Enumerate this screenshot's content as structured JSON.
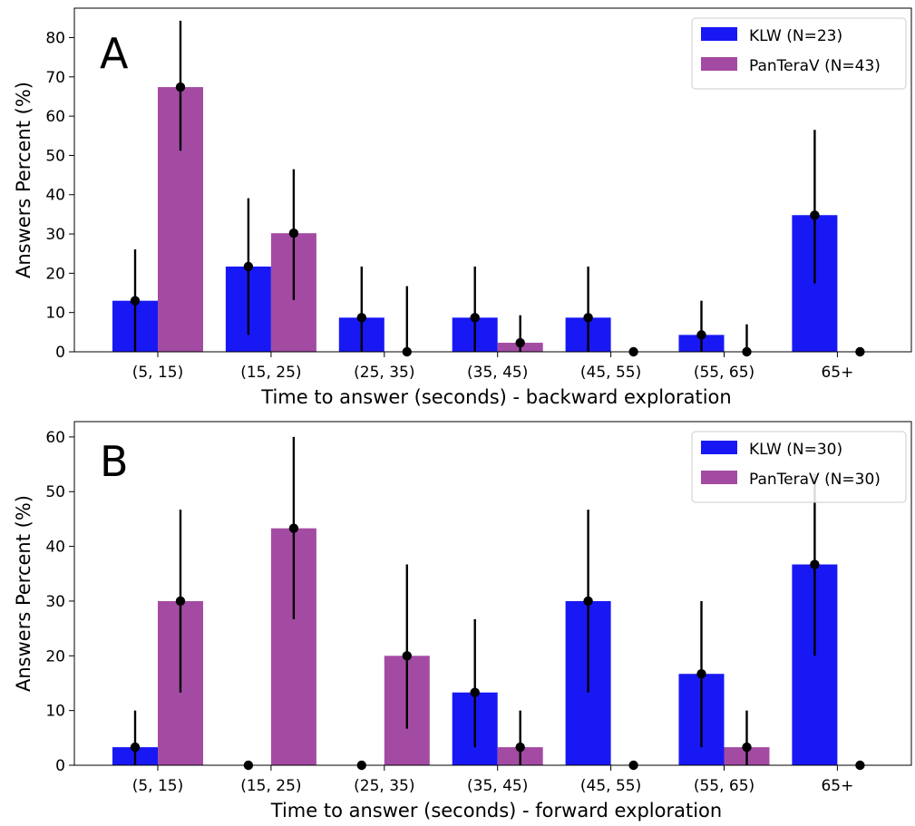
{
  "chart_data": [
    {
      "type": "bar",
      "panel_label": "A",
      "categories": [
        "(5, 15)",
        "(15, 25)",
        "(25, 35)",
        "(35, 45)",
        "(45, 55)",
        "(55, 65)",
        "65+"
      ],
      "xlabel": "Time to answer (seconds) - backward exploration",
      "ylabel": "Answers Percent (%)",
      "ylim": [
        0,
        87.5
      ],
      "yticks": [
        0,
        10,
        20,
        30,
        40,
        50,
        60,
        70,
        80
      ],
      "legend_position": "top-right",
      "grid": false,
      "series": [
        {
          "name": "KLW (N=23)",
          "color": "#1818f5",
          "values": [
            13.0,
            21.7,
            8.7,
            8.7,
            8.7,
            4.3,
            34.8
          ],
          "err_low": [
            0,
            4.3,
            0,
            0,
            0,
            0,
            17.4
          ],
          "err_high": [
            26.1,
            39.1,
            21.7,
            21.7,
            21.7,
            13.0,
            56.5
          ]
        },
        {
          "name": "PanTeraV (N=43)",
          "color": "#a34ba3",
          "values": [
            67.4,
            30.2,
            0,
            2.3,
            0,
            0,
            0
          ],
          "err_low": [
            51.2,
            13.2,
            0,
            0,
            0,
            0,
            0
          ],
          "err_high": [
            84.3,
            46.5,
            16.7,
            9.3,
            0,
            7.0,
            0
          ]
        }
      ]
    },
    {
      "type": "bar",
      "panel_label": "B",
      "categories": [
        "(5, 15)",
        "(15, 25)",
        "(25, 35)",
        "(35, 45)",
        "(45, 55)",
        "(55, 65)",
        "65+"
      ],
      "xlabel": "Time to answer (seconds) - forward exploration",
      "ylabel": "Answers Percent (%)",
      "ylim": [
        0,
        62.8
      ],
      "yticks": [
        0,
        10,
        20,
        30,
        40,
        50,
        60
      ],
      "legend_position": "top-right",
      "grid": false,
      "series": [
        {
          "name": "KLW (N=30)",
          "color": "#1818f5",
          "values": [
            3.3,
            0,
            0,
            13.3,
            30.0,
            16.7,
            36.7
          ],
          "err_low": [
            0,
            0,
            0,
            3.3,
            13.3,
            3.3,
            20.0
          ],
          "err_high": [
            10.0,
            0,
            0,
            26.7,
            46.7,
            30.0,
            53.3
          ]
        },
        {
          "name": "PanTeraV (N=30)",
          "color": "#a34ba3",
          "values": [
            30.0,
            43.3,
            20.0,
            3.3,
            0,
            3.3,
            0
          ],
          "err_low": [
            13.3,
            26.7,
            6.7,
            0,
            0,
            0,
            0
          ],
          "err_high": [
            46.7,
            60.0,
            36.7,
            10.0,
            0,
            10.0,
            0
          ]
        }
      ]
    }
  ]
}
